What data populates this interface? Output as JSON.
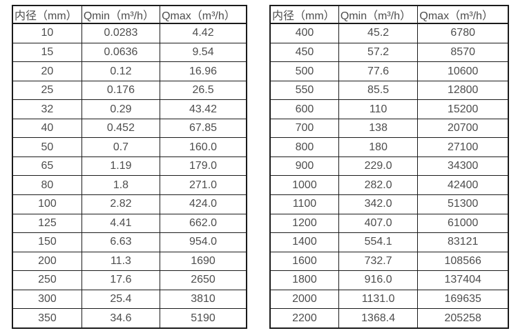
{
  "colors": {
    "background": "#ffffff",
    "border": "#1a1a1a",
    "text": "#4d4d4d"
  },
  "tables": [
    {
      "name": "small-diameters",
      "headers": [
        "内径（mm）",
        "Qmin（m³/h）",
        "Qmax（m³/h）"
      ],
      "rows": [
        [
          "10",
          "0.0283",
          "4.42"
        ],
        [
          "15",
          "0.0636",
          "9.54"
        ],
        [
          "20",
          "0.12",
          "16.96"
        ],
        [
          "25",
          "0.176",
          "26.5"
        ],
        [
          "32",
          "0.29",
          "43.42"
        ],
        [
          "40",
          "0.452",
          "67.85"
        ],
        [
          "50",
          "0.7",
          "160.0"
        ],
        [
          "65",
          "1.19",
          "179.0"
        ],
        [
          "80",
          "1.8",
          "271.0"
        ],
        [
          "100",
          "2.82",
          "424.0"
        ],
        [
          "125",
          "4.41",
          "662.0"
        ],
        [
          "150",
          "6.63",
          "954.0"
        ],
        [
          "200",
          "11.3",
          "1690"
        ],
        [
          "250",
          "17.6",
          "2650"
        ],
        [
          "300",
          "25.4",
          "3810"
        ],
        [
          "350",
          "34.6",
          "5190"
        ]
      ]
    },
    {
      "name": "large-diameters",
      "headers": [
        "内径（mm）",
        "Qmin（m³/h）",
        "Qmax（m³/h）"
      ],
      "rows": [
        [
          "400",
          "45.2",
          "6780"
        ],
        [
          "450",
          "57.2",
          "8570"
        ],
        [
          "500",
          "77.6",
          "10600"
        ],
        [
          "550",
          "85.5",
          "12800"
        ],
        [
          "600",
          "110",
          "15200"
        ],
        [
          "700",
          "138",
          "20700"
        ],
        [
          "800",
          "180",
          "27100"
        ],
        [
          "900",
          "229.0",
          "34300"
        ],
        [
          "1000",
          "282.0",
          "42400"
        ],
        [
          "1100",
          "342.0",
          "51300"
        ],
        [
          "1200",
          "407.0",
          "61000"
        ],
        [
          "1400",
          "554.1",
          "83121"
        ],
        [
          "1600",
          "732.7",
          "108566"
        ],
        [
          "1800",
          "916.0",
          "137404"
        ],
        [
          "2000",
          "1131.0",
          "169635"
        ],
        [
          "2200",
          "1368.4",
          "205258"
        ]
      ]
    }
  ]
}
